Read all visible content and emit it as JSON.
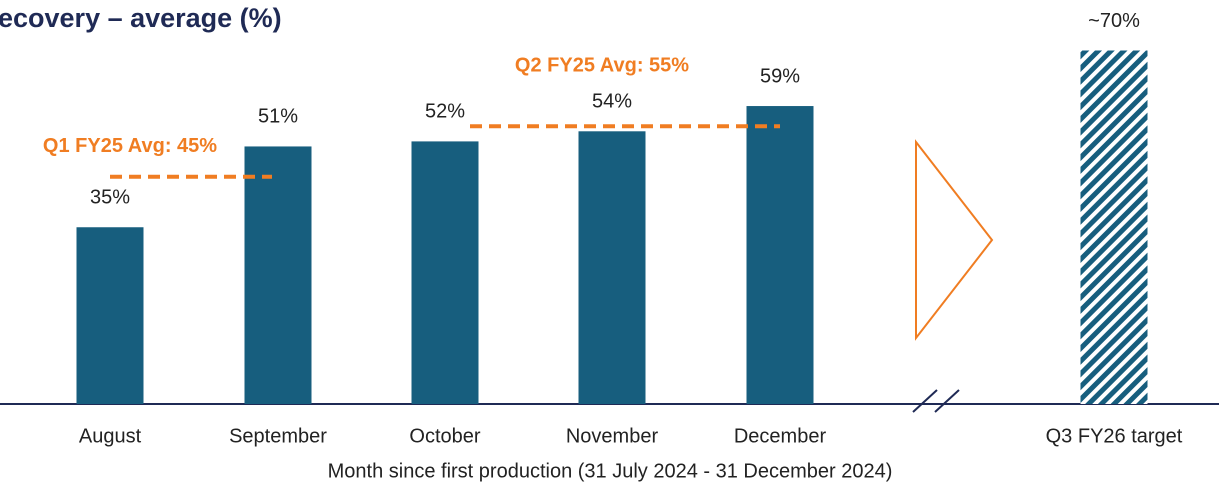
{
  "chart_data": {
    "type": "bar",
    "title": "ecovery – average (%)",
    "x_label": "Month since first production (31 July 2024 - 31 December 2024)",
    "categories": [
      "August",
      "September",
      "October",
      "November",
      "December",
      "Q3 FY26 target"
    ],
    "values": [
      35,
      51,
      52,
      54,
      59,
      70
    ],
    "value_labels": [
      "35%",
      "51%",
      "52%",
      "54%",
      "59%",
      "~70%"
    ],
    "hatched": [
      false,
      false,
      false,
      false,
      false,
      true
    ],
    "color": "#175e7e",
    "ylim": [
      0,
      80
    ],
    "averages": [
      {
        "label": "Q1 FY25 Avg: 45%",
        "value": 45,
        "span": [
          "August",
          "September"
        ]
      },
      {
        "label": "Q2 FY25 Avg: 55%",
        "value": 55,
        "span": [
          "October",
          "December"
        ]
      }
    ],
    "average_color": "#f07d22"
  }
}
